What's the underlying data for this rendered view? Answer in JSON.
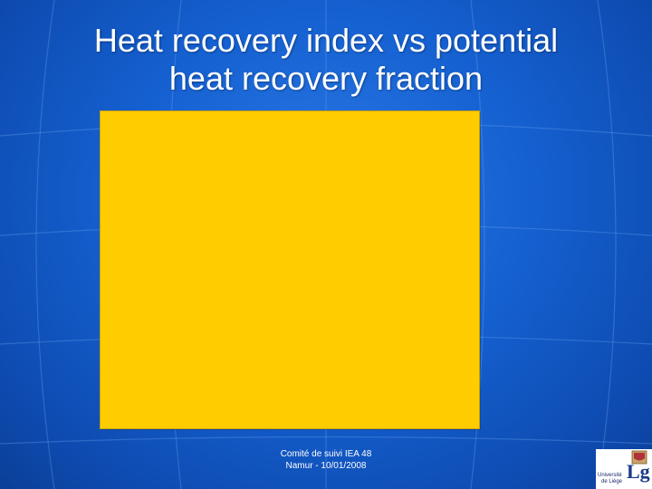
{
  "slide": {
    "title_line1": "Heat recovery index vs potential",
    "title_line2": "heat recovery fraction",
    "footer_line1": "Comité de suivi IEA 48",
    "footer_line2": "Namur - 10/01/2008"
  },
  "logo": {
    "line1": "Université",
    "line2": "de Liège",
    "mark": "Lg"
  },
  "colors": {
    "background": "#1560d0",
    "content_box": "#ffcc00",
    "text": "#ffffff"
  }
}
